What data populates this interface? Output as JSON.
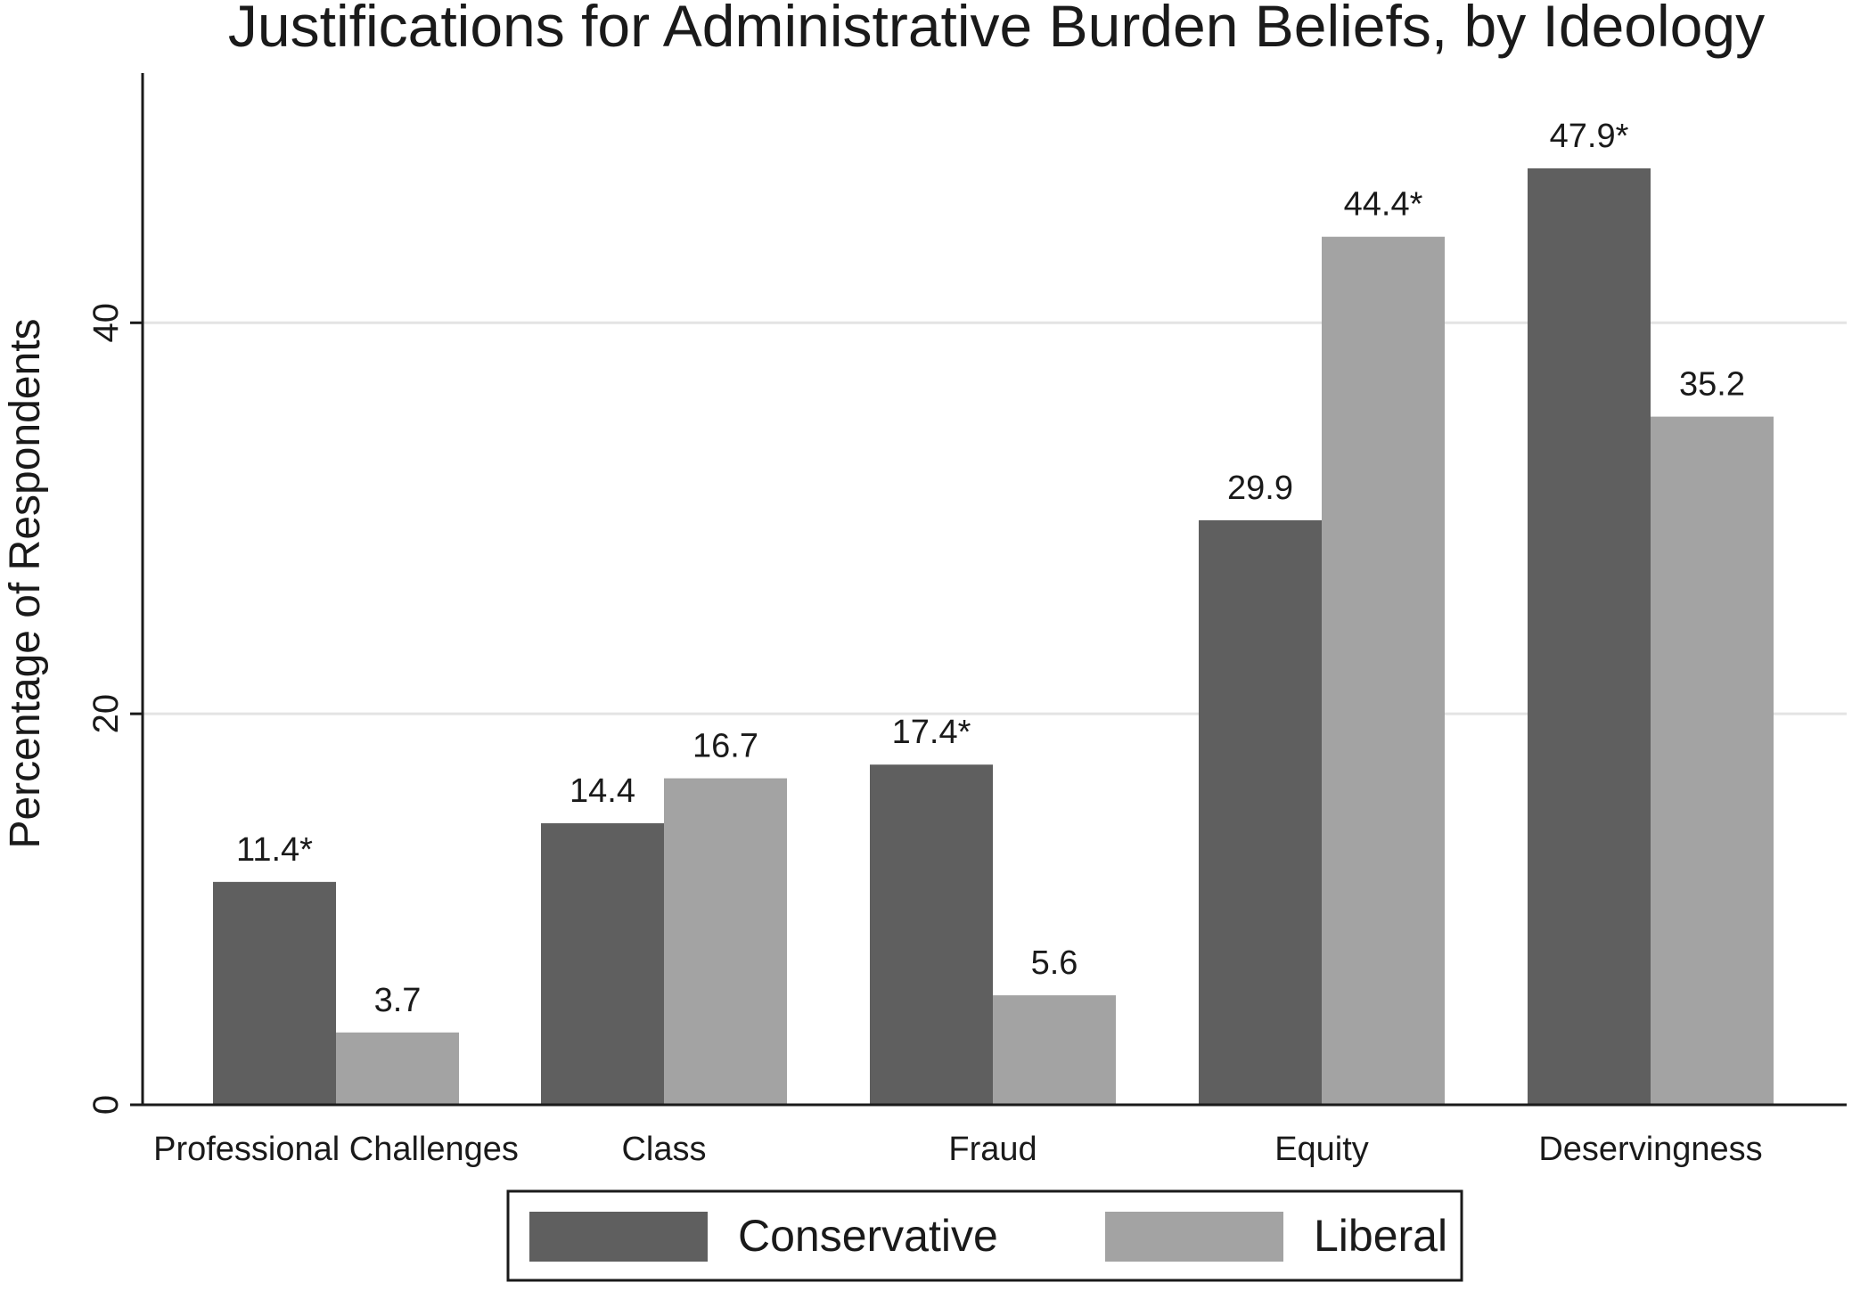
{
  "chart_data": {
    "type": "bar",
    "title": "Justifications for Administrative Burden Beliefs, by Ideology",
    "ylabel": "Percentage of Respondents",
    "xlabel": "",
    "ylim": [
      0,
      52.5
    ],
    "yticks": [
      0,
      20,
      40
    ],
    "grid": true,
    "legend_position": "bottom",
    "categories": [
      "Professional Challenges",
      "Class",
      "Fraud",
      "Equity",
      "Deservingness"
    ],
    "series": [
      {
        "name": "Conservative",
        "color": "#5f5f5f",
        "values": [
          11.4,
          14.4,
          17.4,
          29.9,
          47.9
        ],
        "labels": [
          "11.4*",
          "14.4",
          "17.4*",
          "29.9",
          "47.9*"
        ]
      },
      {
        "name": "Liberal",
        "color": "#a3a3a3",
        "values": [
          3.7,
          16.7,
          5.6,
          44.4,
          35.2
        ],
        "labels": [
          "3.7",
          "16.7",
          "5.6",
          "44.4*",
          "35.2"
        ]
      }
    ]
  }
}
